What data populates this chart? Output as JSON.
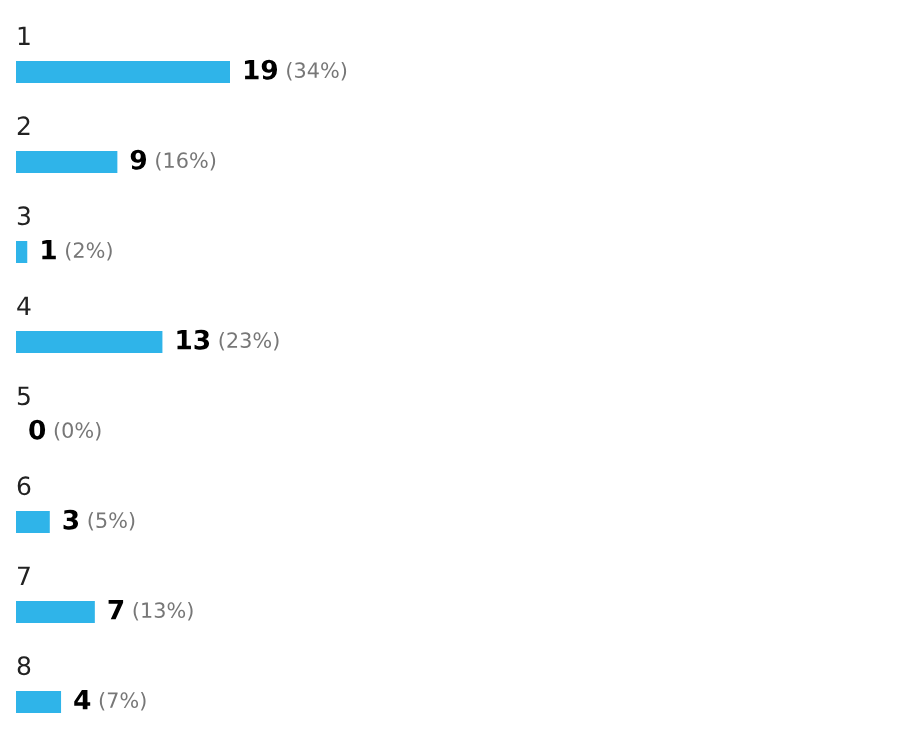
{
  "chart_data": {
    "type": "bar",
    "orientation": "horizontal",
    "categories": [
      "1",
      "2",
      "3",
      "4",
      "5",
      "6",
      "7",
      "8"
    ],
    "values": [
      19,
      9,
      1,
      13,
      0,
      3,
      7,
      4
    ],
    "value_labels": [
      "19 (34%)",
      "9 (16%)",
      "1 (2%)",
      "13 (23%)",
      "0 (0%)",
      "3 (5%)",
      "7 (13%)",
      "4 (7%)"
    ],
    "color": "#2fb4e9"
  }
}
